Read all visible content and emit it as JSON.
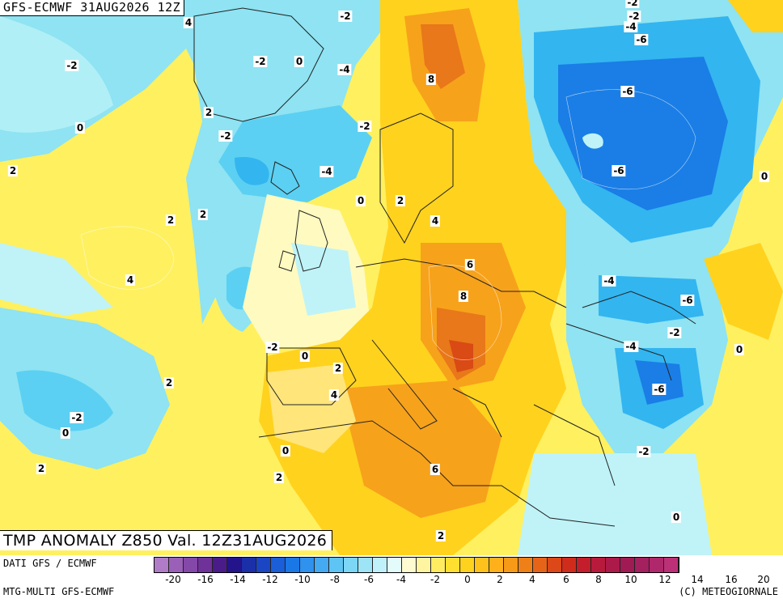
{
  "header": "GFS-ECMWF 31AUG2026 12Z",
  "caption": "TMP ANOMALY Z850 Val. 12Z31AUG2026",
  "source_left": "DATI GFS / ECMWF",
  "source_bottom": "MTG-MULTI GFS-ECMWF",
  "copyright": "(C) METEOGIORNALE",
  "colors": {
    "ocean_cyan": "#8fe3f2",
    "cyan_light": "#bff3f8",
    "blue_mid": "#33b5f0",
    "blue_deep": "#1a7ee6",
    "pale": "#fffac0",
    "yellow": "#fff060",
    "yellow_deep": "#ffd21e",
    "orange": "#f7a21b",
    "orange_deep": "#e8781a",
    "red": "#d94a14"
  },
  "legend": {
    "colors": [
      "#b07cc8",
      "#9a60b8",
      "#8448a8",
      "#6e3298",
      "#4a1c8a",
      "#24148c",
      "#1a2fa8",
      "#1a46c4",
      "#1a5ed8",
      "#1a78e6",
      "#2e92ee",
      "#44aaf2",
      "#5ec4f4",
      "#7cd6f6",
      "#9ce4f6",
      "#c0f0fa",
      "#e4fbfb",
      "#fffbd0",
      "#fff4a0",
      "#ffec60",
      "#ffe030",
      "#ffd21e",
      "#ffc21a",
      "#ffb01a",
      "#f79a18",
      "#ef8018",
      "#e66418",
      "#dc4818",
      "#d02c1c",
      "#c41e2c",
      "#b81a3c",
      "#ac1a4a",
      "#a01a54",
      "#a4205e",
      "#b0286c",
      "#bc3078"
    ],
    "ticks": [
      "-20",
      "-16",
      "-14",
      "-12",
      "-10",
      "-8",
      "-6",
      "-4",
      "-2",
      "0",
      "2",
      "4",
      "6",
      "8",
      "10",
      "12",
      "14",
      "16",
      "20"
    ]
  },
  "contour_labels": [
    "4",
    "-2",
    "-2",
    "-2",
    "-4",
    "0",
    "2",
    "-2",
    "0",
    "-2",
    "0",
    "-4",
    "8",
    "-2",
    "-4",
    "-6",
    "-6",
    "-6",
    "-2",
    "-4",
    "2",
    "2",
    "2",
    "4",
    "0",
    "-4",
    "6",
    "8",
    "-4",
    "-6",
    "-2",
    "0",
    "-2",
    "0",
    "2",
    "2",
    "4",
    "-2",
    "0",
    "-4",
    "-6",
    "2",
    "4",
    "2",
    "-2",
    "6",
    "0",
    "2",
    "0",
    "2"
  ]
}
